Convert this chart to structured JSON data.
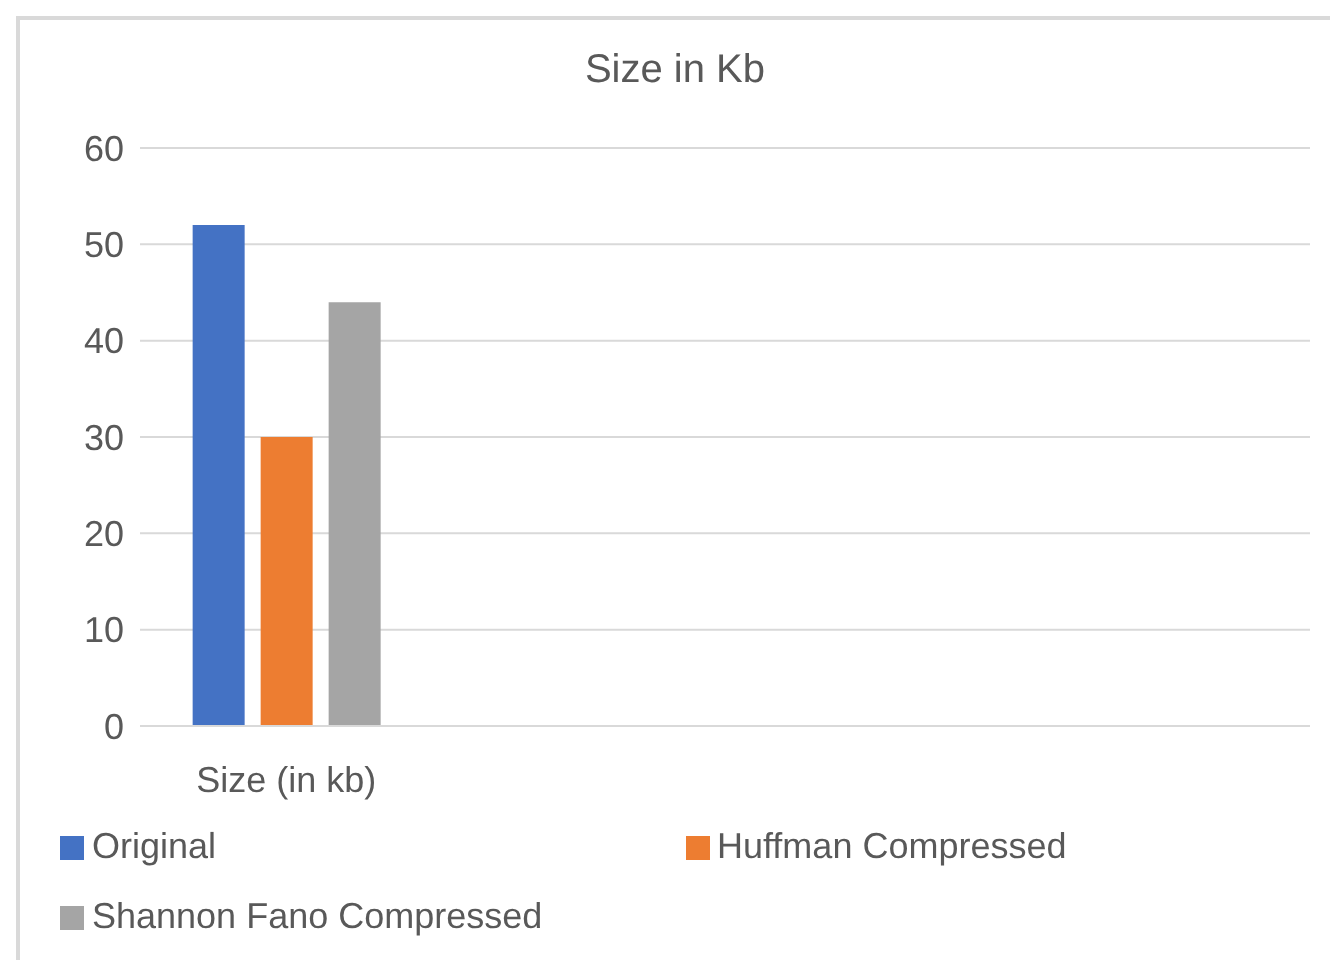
{
  "chart_data": {
    "type": "bar",
    "title": "Size in Kb",
    "categories": [
      "Size (in kb)",
      null,
      null,
      null
    ],
    "series": [
      {
        "name": "Original",
        "color": "#4472c4",
        "values": [
          52,
          null,
          null,
          null
        ]
      },
      {
        "name": "Huffman Compressed",
        "color": "#ed7d31",
        "values": [
          30,
          null,
          null,
          null
        ]
      },
      {
        "name": "Shannon Fano Compressed",
        "color": "#a5a5a5",
        "values": [
          44,
          null,
          null,
          null
        ]
      }
    ],
    "ylim": [
      0,
      60
    ],
    "yticks": [
      0,
      10,
      20,
      30,
      40,
      50,
      60
    ],
    "grid": "y",
    "legend": "bottom"
  }
}
